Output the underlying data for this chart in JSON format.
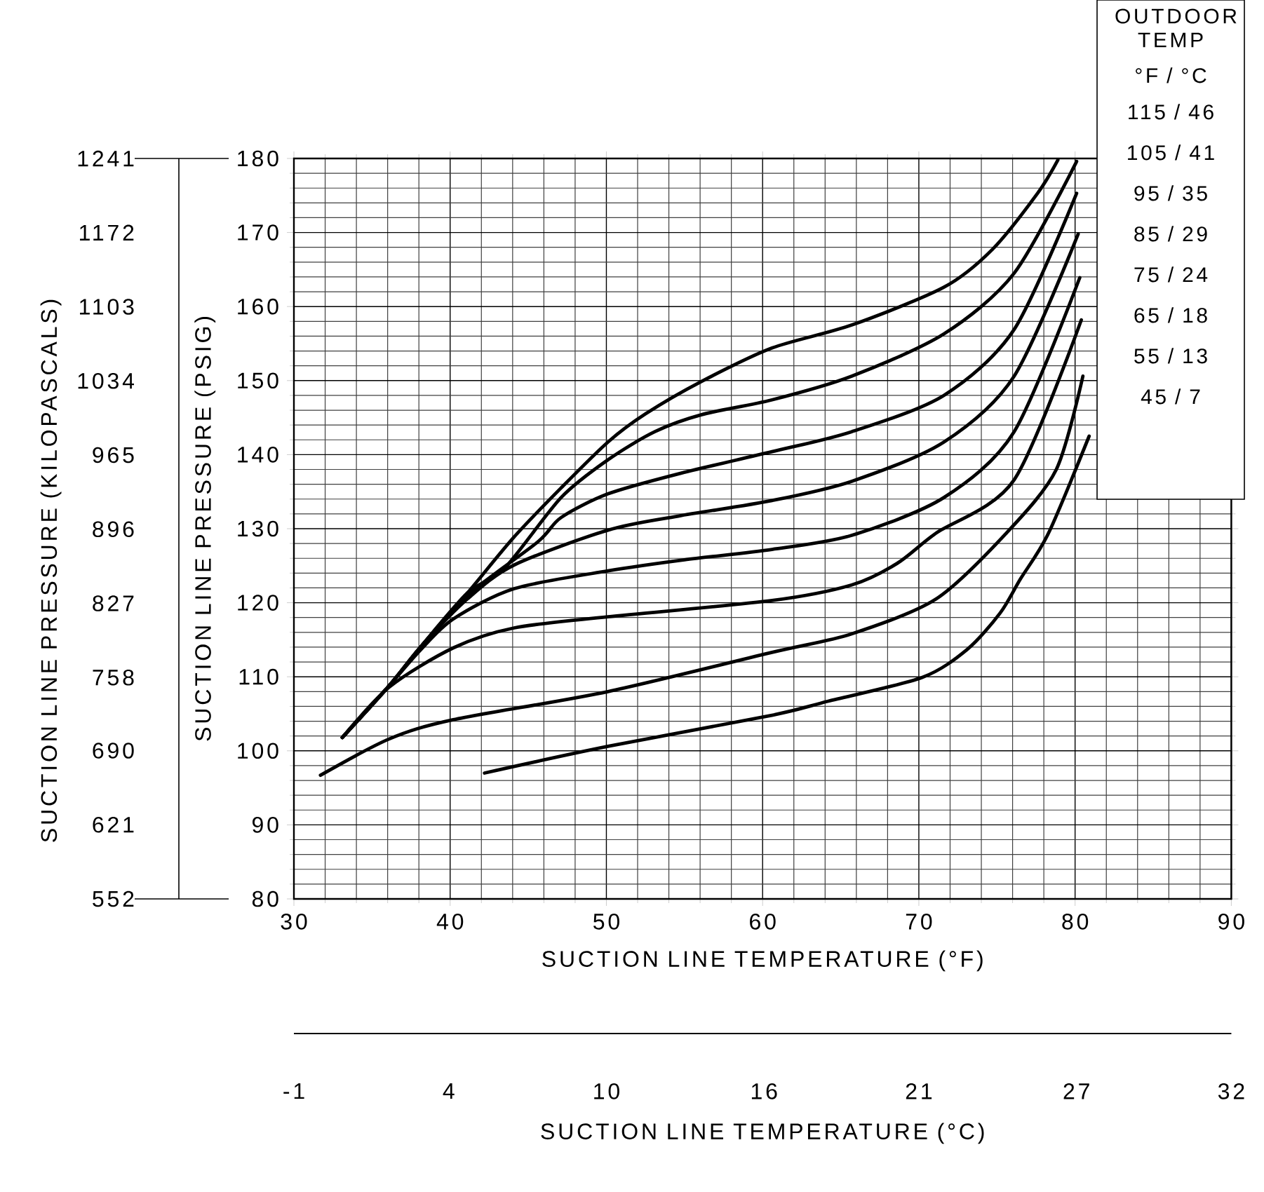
{
  "chart_data": {
    "type": "line",
    "xlabel": "SUCTION LINE TEMPERATURE (°F)",
    "ylabel": "SUCTION LINE PRESSURE (PSIG)",
    "y2label": "SUCTION LINE PRESSURE (KILOPASCALS)",
    "x2label": "SUCTION LINE TEMPERATURE (°C)",
    "legend_title": "OUTDOOR TEMP",
    "annotations": [
      "°F / °C"
    ],
    "xlim": [
      30,
      90
    ],
    "xticks": [
      30,
      40,
      50,
      60,
      70,
      80,
      90
    ],
    "ylim": [
      80,
      180
    ],
    "yticks": [
      80,
      90,
      100,
      110,
      120,
      130,
      140,
      150,
      160,
      170,
      180
    ],
    "y2lim": [
      552,
      1241
    ],
    "y2ticks": [
      552,
      621,
      690,
      758,
      827,
      896,
      965,
      1034,
      1103,
      1172,
      1241
    ],
    "x2lim": [
      -1.1,
      32.2
    ],
    "x2ticks": [
      {
        "value": -1.1,
        "label": "-1"
      },
      {
        "value": 4.4,
        "label": "4"
      },
      {
        "value": 10,
        "label": "10"
      },
      {
        "value": 15.6,
        "label": "16"
      },
      {
        "value": 21.1,
        "label": "21"
      },
      {
        "value": 26.7,
        "label": "27"
      },
      {
        "value": 32.2,
        "label": "32"
      }
    ],
    "grid": true,
    "legend": "top right",
    "series": [
      {
        "name": "115 / 46",
        "color": "#000000",
        "x": [
          33.1,
          36.1,
          38.1,
          41.1,
          44.1,
          47.1,
          50.1,
          52.5,
          56.1,
          60.6,
          65.7,
          71.6,
          74.7,
          77.6,
          78.9
        ],
        "values": [
          101.8,
          108.8,
          114.0,
          121.3,
          128.9,
          135.5,
          141.7,
          145.5,
          149.9,
          154.4,
          157.5,
          162.6,
          167.7,
          175.3,
          179.8
        ]
      },
      {
        "name": "105 / 41",
        "color": "#000000",
        "x": [
          33.1,
          36.1,
          38.1,
          41.1,
          43.5,
          47.1,
          50.1,
          53.1,
          56.1,
          60.6,
          65.7,
          71.6,
          76.1,
          80.1
        ],
        "values": [
          101.8,
          108.8,
          114.0,
          121.3,
          124.7,
          134.2,
          139.3,
          143.1,
          145.4,
          147.4,
          150.6,
          156.3,
          164.5,
          179.6
        ]
      },
      {
        "name": "95 / 35",
        "color": "#000000",
        "x": [
          33.1,
          36.1,
          38.1,
          41.1,
          45.6,
          47.1,
          50.1,
          54.6,
          60.6,
          65.7,
          71.6,
          76.1,
          80.1
        ],
        "values": [
          101.8,
          108.8,
          114.0,
          121.0,
          128.2,
          131.5,
          134.7,
          137.4,
          140.4,
          143.1,
          148.0,
          156.9,
          175.3
        ]
      },
      {
        "name": "85 / 29",
        "color": "#000000",
        "x": [
          33.1,
          36.1,
          38.1,
          41.1,
          44.1,
          50.1,
          54.6,
          60.6,
          65.7,
          71.6,
          76.1,
          80.2
        ],
        "values": [
          101.8,
          108.8,
          114.0,
          120.5,
          125.1,
          129.8,
          131.7,
          133.8,
          136.4,
          141.7,
          150.6,
          169.8
        ]
      },
      {
        "name": "75 / 24",
        "color": "#000000",
        "x": [
          33.1,
          36.1,
          38.1,
          40.2,
          44.1,
          50.1,
          55.0,
          60.6,
          65.7,
          71.6,
          76.1,
          80.3
        ],
        "values": [
          101.8,
          108.8,
          113.6,
          117.8,
          121.9,
          124.3,
          125.8,
          127.2,
          129.1,
          134.2,
          143.1,
          163.9
        ]
      },
      {
        "name": "65 / 18",
        "color": "#000000",
        "x": [
          33.1,
          36.1,
          40.2,
          44.1,
          50.1,
          60.6,
          65.7,
          68.6,
          71.1,
          76.1,
          80.4
        ],
        "values": [
          101.8,
          108.6,
          113.9,
          116.6,
          118.1,
          120.3,
          122.4,
          125.3,
          129.4,
          136.6,
          158.2
        ]
      },
      {
        "name": "55 / 13",
        "color": "#000000",
        "x": [
          31.7,
          36.1,
          40.2,
          50.1,
          60.6,
          65.7,
          71.1,
          75.6,
          78.8,
          80.5
        ],
        "values": [
          96.7,
          101.6,
          104.2,
          108.0,
          113.3,
          115.8,
          120.5,
          129.4,
          138.0,
          150.6
        ]
      },
      {
        "name": "45 / 7",
        "color": "#000000",
        "x": [
          42.2,
          50.1,
          60.6,
          64.2,
          70.2,
          73.1,
          75.2,
          76.5,
          78.3,
          80.9
        ],
        "values": [
          97.0,
          100.6,
          104.8,
          106.7,
          109.9,
          113.7,
          118.6,
          123.2,
          129.4,
          142.5
        ]
      }
    ]
  }
}
